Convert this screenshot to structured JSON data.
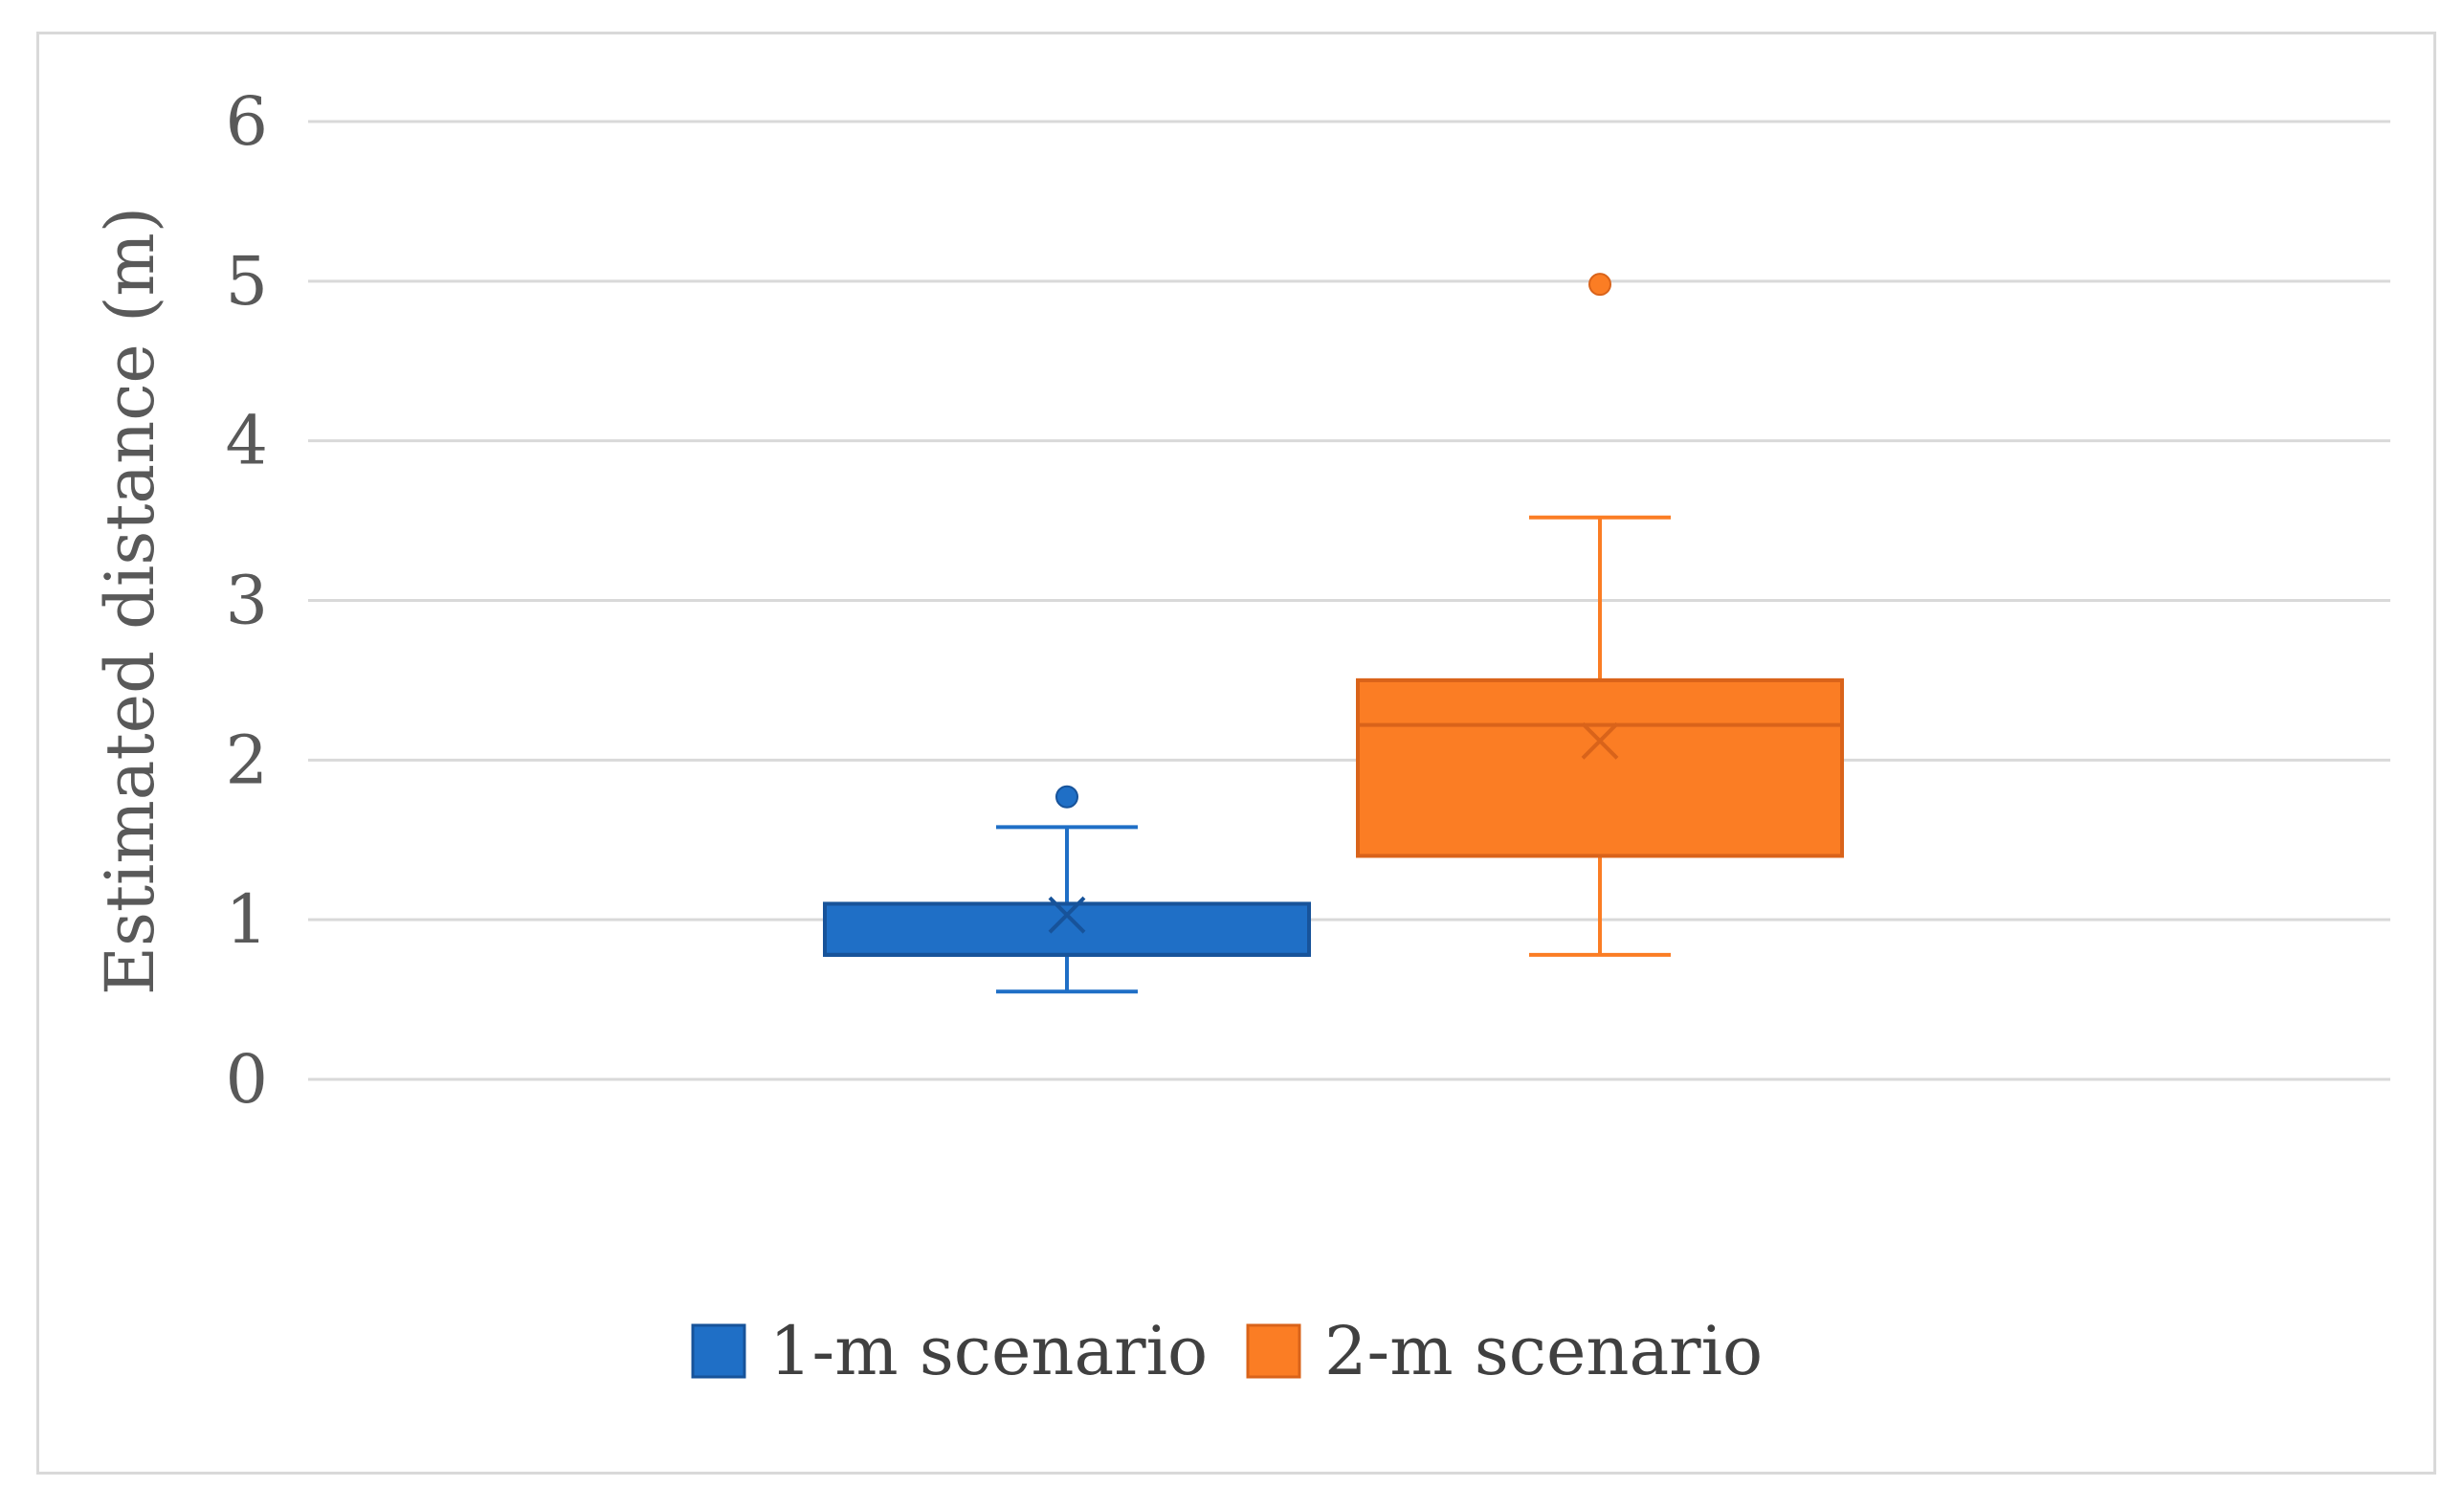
{
  "chart_data": {
    "type": "box",
    "title": "",
    "xlabel": "",
    "ylabel": "Estimated distance (m)",
    "ylim": [
      0,
      6
    ],
    "yticks": [
      0,
      1,
      2,
      3,
      4,
      5,
      6
    ],
    "grid": true,
    "legend_position": "bottom",
    "series": [
      {
        "name": "1-m scenario",
        "color": "#1f6fc6",
        "min": 0.55,
        "q1": 0.78,
        "median": 0.78,
        "q3": 1.1,
        "max": 1.58,
        "mean": 1.03,
        "outliers": [
          1.77
        ]
      },
      {
        "name": "2-m scenario",
        "color": "#fb7d24",
        "min": 0.78,
        "q1": 1.4,
        "median": 2.22,
        "q3": 2.5,
        "max": 3.52,
        "mean": 2.12,
        "outliers": [
          4.98
        ]
      }
    ]
  }
}
